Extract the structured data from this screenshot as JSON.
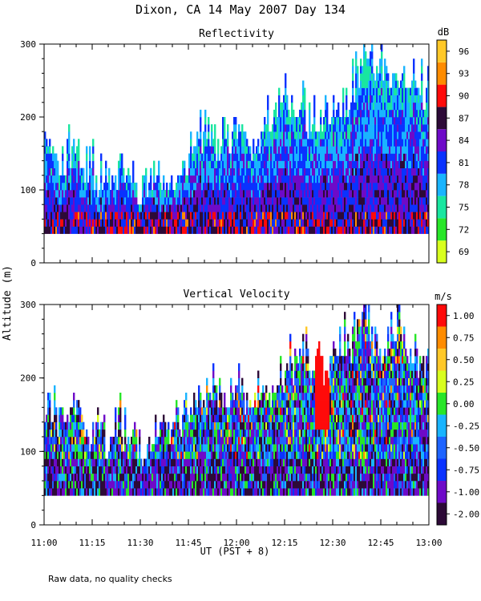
{
  "title": "Dixon, CA 14 May 2007  Day 134",
  "ylabel": "Altitude (m)",
  "xlabel": "UT  (PST + 8)",
  "footnote": "Raw data, no quality checks",
  "chart_data": [
    {
      "type": "heatmap",
      "title": "Reflectivity",
      "colorbar_unit": "dB",
      "colorbar_ticks": [
        "69",
        "72",
        "75",
        "78",
        "81",
        "84",
        "87",
        "90",
        "93",
        "96"
      ],
      "colorbar_colors": [
        "#d8ff1e",
        "#28e628",
        "#19e6a0",
        "#19b4ff",
        "#0a32ff",
        "#6e0ac8",
        "#2d0a37",
        "#ff0a0a",
        "#ff8c00",
        "#ffc828"
      ],
      "xlim": [
        0,
        120
      ],
      "ylim": [
        0,
        300
      ],
      "x_ticks_minutes": [
        0,
        15,
        30,
        45,
        60,
        75,
        90,
        105,
        120
      ],
      "y_ticks": [
        0,
        100,
        200,
        300
      ],
      "data_floor_altitude": 40,
      "column_tops": [
        178,
        160,
        178,
        140,
        130,
        150,
        120,
        140,
        140,
        160,
        200,
        180,
        200,
        180,
        200,
        230,
        230,
        200,
        240,
        240,
        300,
        280,
        280,
        280,
        240
      ]
    },
    {
      "type": "heatmap",
      "title": "Vertical Velocity",
      "colorbar_unit": "m/s",
      "colorbar_ticks": [
        "-2.00",
        "-1.00",
        "-0.75",
        "-0.50",
        "-0.25",
        "0.00",
        "0.25",
        "0.50",
        "0.75",
        "1.00"
      ],
      "colorbar_colors": [
        "#2d0a37",
        "#6e0ac8",
        "#0a32ff",
        "#1e64ff",
        "#19b4ff",
        "#28e628",
        "#d8ff1e",
        "#ffc828",
        "#ff8c00",
        "#ff0a0a"
      ],
      "xlim": [
        0,
        120
      ],
      "ylim": [
        0,
        300
      ],
      "x_ticks_minutes": [
        0,
        15,
        30,
        45,
        60,
        75,
        90,
        105,
        120
      ],
      "x_tick_labels": [
        "11:00",
        "11:15",
        "11:30",
        "11:45",
        "12:00",
        "12:15",
        "12:30",
        "12:45",
        "13:00"
      ],
      "y_ticks": [
        0,
        100,
        200,
        300
      ],
      "data_floor_altitude": 40,
      "column_tops": [
        178,
        160,
        178,
        140,
        130,
        150,
        120,
        150,
        160,
        170,
        200,
        200,
        200,
        190,
        200,
        220,
        240,
        230,
        250,
        260,
        300,
        260,
        280,
        260,
        230
      ]
    }
  ]
}
